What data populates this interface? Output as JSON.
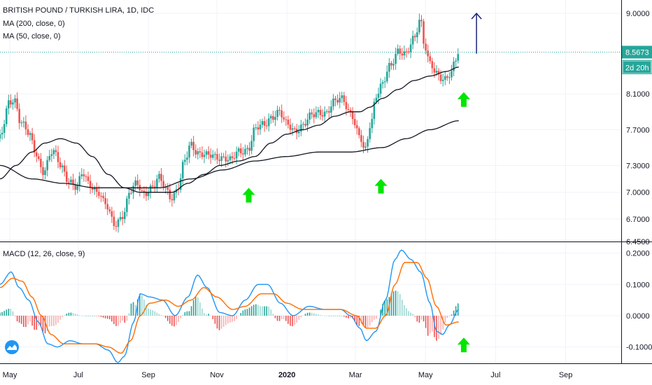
{
  "header": {
    "symbol_line": "BRITISH POUND / TURKISH LIRA, 1D, IDC",
    "ma200_label": "MA (200, close, 0)",
    "ma50_label": "MA (50, close, 0)",
    "macd_label": "MACD (12, 26, close, 9)"
  },
  "price_tag": {
    "value": "8.5673",
    "countdown": "2d 20h"
  },
  "colors": {
    "up": "#26a69a",
    "down": "#ef5350",
    "ma": "#131722",
    "macd": "#2196f3",
    "signal": "#ff6d00",
    "hist_up": "#26a69a",
    "hist_down": "#ef5350",
    "arrow_up": "#00e600",
    "arrow_target": "#1a237e",
    "tag": "#26a69a",
    "grid": "#f0f3fa",
    "logo": "#2196f3"
  },
  "chart_data": [
    {
      "type": "candlestick",
      "title": "",
      "ylim": [
        6.45,
        9.15
      ],
      "yticks": [
        9.0,
        8.1,
        7.7,
        7.3,
        7.0,
        6.7,
        6.45
      ],
      "ytick_labels": [
        "9.0000",
        "8.1000",
        "7.7000",
        "7.3000",
        "7.0000",
        "6.7000",
        "6.4500"
      ],
      "current_price": 8.5673,
      "xticks": [
        {
          "label": "May",
          "x": 0
        },
        {
          "label": "Jul",
          "x": 43
        },
        {
          "label": "Sep",
          "x": 87
        },
        {
          "label": "Nov",
          "x": 130
        },
        {
          "label": "2020",
          "x": 174
        },
        {
          "label": "Mar",
          "x": 217
        },
        {
          "label": "May",
          "x": 261
        },
        {
          "label": "Jul",
          "x": 305
        },
        {
          "label": "Sep",
          "x": 349
        }
      ],
      "xlim": [
        0,
        390
      ],
      "price_keypoints": [
        [
          0,
          7.6
        ],
        [
          6,
          8.0
        ],
        [
          9,
          8.05
        ],
        [
          13,
          7.8
        ],
        [
          18,
          7.65
        ],
        [
          22,
          7.45
        ],
        [
          27,
          7.25
        ],
        [
          33,
          7.45
        ],
        [
          38,
          7.3
        ],
        [
          43,
          7.15
        ],
        [
          48,
          7.05
        ],
        [
          52,
          7.2
        ],
        [
          56,
          7.1
        ],
        [
          62,
          7.0
        ],
        [
          66,
          6.85
        ],
        [
          72,
          6.65
        ],
        [
          77,
          6.75
        ],
        [
          82,
          7.0
        ],
        [
          86,
          7.1
        ],
        [
          90,
          7.0
        ],
        [
          96,
          7.05
        ],
        [
          100,
          7.15
        ],
        [
          104,
          7.05
        ],
        [
          108,
          6.95
        ],
        [
          112,
          7.05
        ],
        [
          116,
          7.35
        ],
        [
          120,
          7.55
        ],
        [
          124,
          7.45
        ],
        [
          130,
          7.4
        ],
        [
          136,
          7.4
        ],
        [
          140,
          7.4
        ],
        [
          145,
          7.35
        ],
        [
          150,
          7.45
        ],
        [
          156,
          7.5
        ],
        [
          160,
          7.7
        ],
        [
          166,
          7.75
        ],
        [
          170,
          7.85
        ],
        [
          175,
          7.9
        ],
        [
          180,
          7.75
        ],
        [
          185,
          7.7
        ],
        [
          190,
          7.75
        ],
        [
          196,
          7.85
        ],
        [
          200,
          7.9
        ],
        [
          205,
          7.9
        ],
        [
          210,
          8.0
        ],
        [
          215,
          8.05
        ],
        [
          220,
          7.9
        ],
        [
          226,
          7.6
        ],
        [
          229,
          7.45
        ],
        [
          233,
          7.8
        ],
        [
          236,
          8.1
        ],
        [
          240,
          8.2
        ],
        [
          245,
          8.4
        ],
        [
          250,
          8.6
        ],
        [
          255,
          8.55
        ],
        [
          260,
          8.7
        ],
        [
          264,
          8.95
        ],
        [
          266,
          8.7
        ],
        [
          270,
          8.45
        ],
        [
          274,
          8.3
        ],
        [
          278,
          8.25
        ],
        [
          283,
          8.35
        ],
        [
          286,
          8.5
        ],
        [
          288,
          8.5673
        ]
      ],
      "ma50_keypoints": [
        [
          0,
          7.15
        ],
        [
          10,
          7.3
        ],
        [
          20,
          7.45
        ],
        [
          28,
          7.55
        ],
        [
          38,
          7.6
        ],
        [
          48,
          7.55
        ],
        [
          58,
          7.4
        ],
        [
          68,
          7.2
        ],
        [
          78,
          7.05
        ],
        [
          88,
          7.0
        ],
        [
          98,
          7.0
        ],
        [
          108,
          7.0
        ],
        [
          118,
          7.1
        ],
        [
          128,
          7.2
        ],
        [
          138,
          7.3
        ],
        [
          150,
          7.35
        ],
        [
          160,
          7.4
        ],
        [
          170,
          7.55
        ],
        [
          180,
          7.65
        ],
        [
          190,
          7.7
        ],
        [
          200,
          7.75
        ],
        [
          210,
          7.85
        ],
        [
          220,
          7.9
        ],
        [
          226,
          7.9
        ],
        [
          232,
          7.95
        ],
        [
          240,
          8.05
        ],
        [
          250,
          8.15
        ],
        [
          260,
          8.25
        ],
        [
          270,
          8.3
        ],
        [
          280,
          8.35
        ],
        [
          288,
          8.4
        ]
      ],
      "ma200_keypoints": [
        [
          0,
          7.3
        ],
        [
          20,
          7.15
        ],
        [
          40,
          7.1
        ],
        [
          60,
          7.05
        ],
        [
          80,
          7.05
        ],
        [
          100,
          7.05
        ],
        [
          120,
          7.15
        ],
        [
          140,
          7.25
        ],
        [
          160,
          7.35
        ],
        [
          180,
          7.4
        ],
        [
          200,
          7.45
        ],
        [
          220,
          7.45
        ],
        [
          240,
          7.5
        ],
        [
          255,
          7.6
        ],
        [
          270,
          7.7
        ],
        [
          288,
          7.8
        ]
      ],
      "annotations": [
        {
          "type": "arrow-up",
          "x": 150,
          "y": 7.05
        },
        {
          "type": "arrow-up",
          "x": 233,
          "y": 7.15
        },
        {
          "type": "arrow-up",
          "x": 285,
          "y": 8.12
        },
        {
          "type": "target-arrow",
          "x": 293,
          "y_from": 8.55,
          "y_to": 9.0
        }
      ]
    },
    {
      "type": "macd",
      "title": "MACD (12, 26, close, 9)",
      "ylim": [
        -0.15,
        0.235
      ],
      "yticks": [
        0.2,
        0.1,
        0.0,
        -0.1
      ],
      "ytick_labels": [
        "0.2000",
        "0.1000",
        "0.0000",
        "-0.1000"
      ],
      "macd_keypoints": [
        [
          0,
          0.1
        ],
        [
          7,
          0.14
        ],
        [
          12,
          0.09
        ],
        [
          18,
          0.05
        ],
        [
          24,
          -0.02
        ],
        [
          30,
          -0.09
        ],
        [
          36,
          -0.1
        ],
        [
          44,
          -0.08
        ],
        [
          52,
          -0.09
        ],
        [
          60,
          -0.09
        ],
        [
          68,
          -0.11
        ],
        [
          74,
          -0.15
        ],
        [
          78,
          -0.13
        ],
        [
          84,
          -0.02
        ],
        [
          88,
          0.07
        ],
        [
          94,
          0.06
        ],
        [
          102,
          0.05
        ],
        [
          110,
          0.0
        ],
        [
          118,
          0.06
        ],
        [
          124,
          0.13
        ],
        [
          130,
          0.09
        ],
        [
          138,
          0.01
        ],
        [
          146,
          0.0
        ],
        [
          154,
          0.05
        ],
        [
          162,
          0.1
        ],
        [
          168,
          0.1
        ],
        [
          176,
          0.04
        ],
        [
          184,
          0.0
        ],
        [
          194,
          0.03
        ],
        [
          204,
          0.02
        ],
        [
          214,
          0.02
        ],
        [
          220,
          0.0
        ],
        [
          226,
          -0.04
        ],
        [
          230,
          -0.08
        ],
        [
          236,
          -0.05
        ],
        [
          242,
          0.05
        ],
        [
          248,
          0.18
        ],
        [
          252,
          0.21
        ],
        [
          258,
          0.18
        ],
        [
          264,
          0.14
        ],
        [
          270,
          0.04
        ],
        [
          274,
          -0.05
        ],
        [
          278,
          -0.06
        ],
        [
          282,
          -0.03
        ],
        [
          288,
          0.02
        ]
      ],
      "signal_keypoints": [
        [
          0,
          0.09
        ],
        [
          8,
          0.12
        ],
        [
          14,
          0.11
        ],
        [
          20,
          0.06
        ],
        [
          26,
          0.0
        ],
        [
          32,
          -0.06
        ],
        [
          40,
          -0.09
        ],
        [
          50,
          -0.09
        ],
        [
          60,
          -0.09
        ],
        [
          68,
          -0.1
        ],
        [
          76,
          -0.12
        ],
        [
          82,
          -0.08
        ],
        [
          88,
          0.0
        ],
        [
          94,
          0.04
        ],
        [
          104,
          0.05
        ],
        [
          112,
          0.03
        ],
        [
          120,
          0.05
        ],
        [
          128,
          0.09
        ],
        [
          136,
          0.06
        ],
        [
          146,
          0.02
        ],
        [
          154,
          0.03
        ],
        [
          164,
          0.07
        ],
        [
          172,
          0.07
        ],
        [
          180,
          0.04
        ],
        [
          190,
          0.02
        ],
        [
          202,
          0.02
        ],
        [
          214,
          0.02
        ],
        [
          224,
          0.0
        ],
        [
          230,
          -0.04
        ],
        [
          236,
          -0.04
        ],
        [
          242,
          0.0
        ],
        [
          248,
          0.1
        ],
        [
          254,
          0.17
        ],
        [
          262,
          0.17
        ],
        [
          268,
          0.12
        ],
        [
          274,
          0.03
        ],
        [
          280,
          -0.03
        ],
        [
          288,
          -0.02
        ]
      ],
      "annotations": [
        {
          "type": "arrow-up",
          "x": 285,
          "y": -0.07
        }
      ]
    }
  ]
}
